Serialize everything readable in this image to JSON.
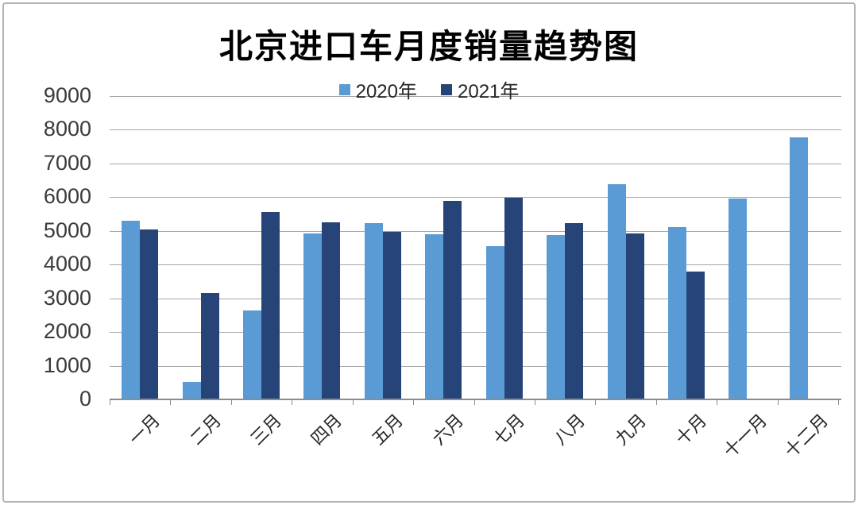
{
  "chart_data": {
    "type": "bar",
    "title": "北京进口车月度销量趋势图",
    "categories": [
      "一月",
      "二月",
      "三月",
      "四月",
      "五月",
      "六月",
      "七月",
      "八月",
      "九月",
      "十月",
      "十一月",
      "十二月"
    ],
    "series": [
      {
        "name": "2020年",
        "color": "#5B9BD5",
        "values": [
          5300,
          530,
          2650,
          4930,
          5230,
          4890,
          4540,
          4870,
          6380,
          5110,
          5960,
          7780
        ]
      },
      {
        "name": "2021年",
        "color": "#264478",
        "values": [
          5040,
          3150,
          5550,
          5260,
          4970,
          5880,
          5980,
          5230,
          4920,
          3790,
          null,
          null
        ]
      }
    ],
    "xlabel": "",
    "ylabel": "",
    "ylim": [
      0,
      9000
    ],
    "ytick_step": 1000,
    "grid": true,
    "legend_position": "top-center"
  },
  "colors": {
    "grid": "#a6a6a6",
    "axis": "#8c8c8c",
    "text": "#262626",
    "frame_border": "#b3b3b3"
  }
}
